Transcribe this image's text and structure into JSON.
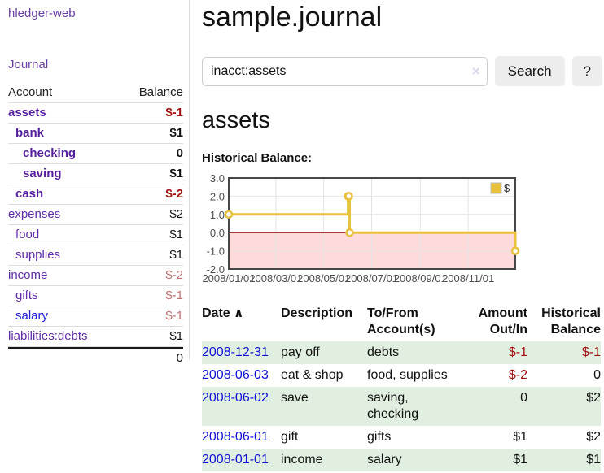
{
  "sidebar": {
    "brand": "hledger-web",
    "journal_link": "Journal",
    "accounts_table": {
      "headers": {
        "account": "Account",
        "balance": "Balance"
      },
      "rows": [
        {
          "name": "assets",
          "indent": 0,
          "name_class": "bold",
          "balance": "$-1",
          "balance_class": "bold-neg"
        },
        {
          "name": "bank",
          "indent": 1,
          "name_class": "bold",
          "balance": "$1",
          "balance_class": "bold"
        },
        {
          "name": "checking",
          "indent": 2,
          "name_class": "bold",
          "balance": "0",
          "balance_class": "bold"
        },
        {
          "name": "saving",
          "indent": 2,
          "name_class": "bold",
          "balance": "$1",
          "balance_class": "bold"
        },
        {
          "name": "cash",
          "indent": 1,
          "name_class": "bold",
          "balance": "$-2",
          "balance_class": "bold-neg"
        },
        {
          "name": "expenses",
          "indent": 0,
          "name_class": "",
          "balance": "$2",
          "balance_class": ""
        },
        {
          "name": "food",
          "indent": 1,
          "name_class": "",
          "balance": "$1",
          "balance_class": ""
        },
        {
          "name": "supplies",
          "indent": 1,
          "name_class": "",
          "balance": "$1",
          "balance_class": ""
        },
        {
          "name": "income",
          "indent": 0,
          "name_class": "",
          "balance": "$-2",
          "balance_class": "soft-neg"
        },
        {
          "name": "gifts",
          "indent": 1,
          "name_class": "",
          "balance": "$-1",
          "balance_class": "soft-neg"
        },
        {
          "name": "salary",
          "indent": 1,
          "name_class": "blue",
          "balance": "$-1",
          "balance_class": "soft-neg"
        },
        {
          "name": "liabilities:debts",
          "indent": 0,
          "name_class": "",
          "balance": "$1",
          "balance_class": ""
        }
      ],
      "total": "0"
    }
  },
  "main": {
    "title": "sample.journal",
    "search": {
      "value": "inacct:assets",
      "button_label": "Search",
      "help_label": "?",
      "clear_glyph": "×"
    },
    "account_heading": "assets",
    "chart_label": "Historical Balance:"
  },
  "chart_data": {
    "type": "line",
    "step": true,
    "title": "Historical Balance",
    "series": [
      {
        "name": "$",
        "color": "#E8C13E",
        "points": [
          [
            "2008-01-01",
            1
          ],
          [
            "2008-06-01",
            2
          ],
          [
            "2008-06-02",
            2
          ],
          [
            "2008-06-03",
            0
          ],
          [
            "2008-12-31",
            -1
          ]
        ]
      }
    ],
    "x_range": [
      "2008-01-01",
      "2008-12-31"
    ],
    "x_ticks": [
      "2008/01/01",
      "2008/03/01",
      "2008/05/01",
      "2008/07/01",
      "2008/09/01",
      "2008/11/01"
    ],
    "y_ticks": [
      "3.0",
      "2.0",
      "1.0",
      "0.0",
      "-1.0",
      "-2.0"
    ],
    "ylim": [
      -2,
      3
    ],
    "grid": true,
    "legend": {
      "label": "$",
      "position": "top-right"
    },
    "negative_region_color": "#ffdada",
    "zero_line_color": "#8b0000",
    "border_color": "#474747",
    "grid_color": "#e4e4e4",
    "tick_text_color": "#4d4d4d"
  },
  "transactions": {
    "headers": {
      "date": "Date",
      "sort_caret": "∧",
      "description": "Description",
      "accounts": "To/From Account(s)",
      "amount": "Amount Out/In",
      "balance": "Historical Balance"
    },
    "rows": [
      {
        "date": "2008-12-31",
        "description": "pay off",
        "accounts": "debts",
        "amount": "$-1",
        "amount_neg": true,
        "balance": "$-1",
        "balance_neg": true,
        "stripe": true
      },
      {
        "date": "2008-06-03",
        "description": "eat & shop",
        "accounts": "food, supplies",
        "amount": "$-2",
        "amount_neg": true,
        "balance": "0",
        "balance_neg": false,
        "stripe": false
      },
      {
        "date": "2008-06-02",
        "description": "save",
        "accounts": "saving, checking",
        "amount": "0",
        "amount_neg": false,
        "balance": "$2",
        "balance_neg": false,
        "stripe": true
      },
      {
        "date": "2008-06-01",
        "description": "gift",
        "accounts": "gifts",
        "amount": "$1",
        "amount_neg": false,
        "balance": "$2",
        "balance_neg": false,
        "stripe": false
      },
      {
        "date": "2008-01-01",
        "description": "income",
        "accounts": "salary",
        "amount": "$1",
        "amount_neg": false,
        "balance": "$1",
        "balance_neg": false,
        "stripe": true
      }
    ]
  }
}
